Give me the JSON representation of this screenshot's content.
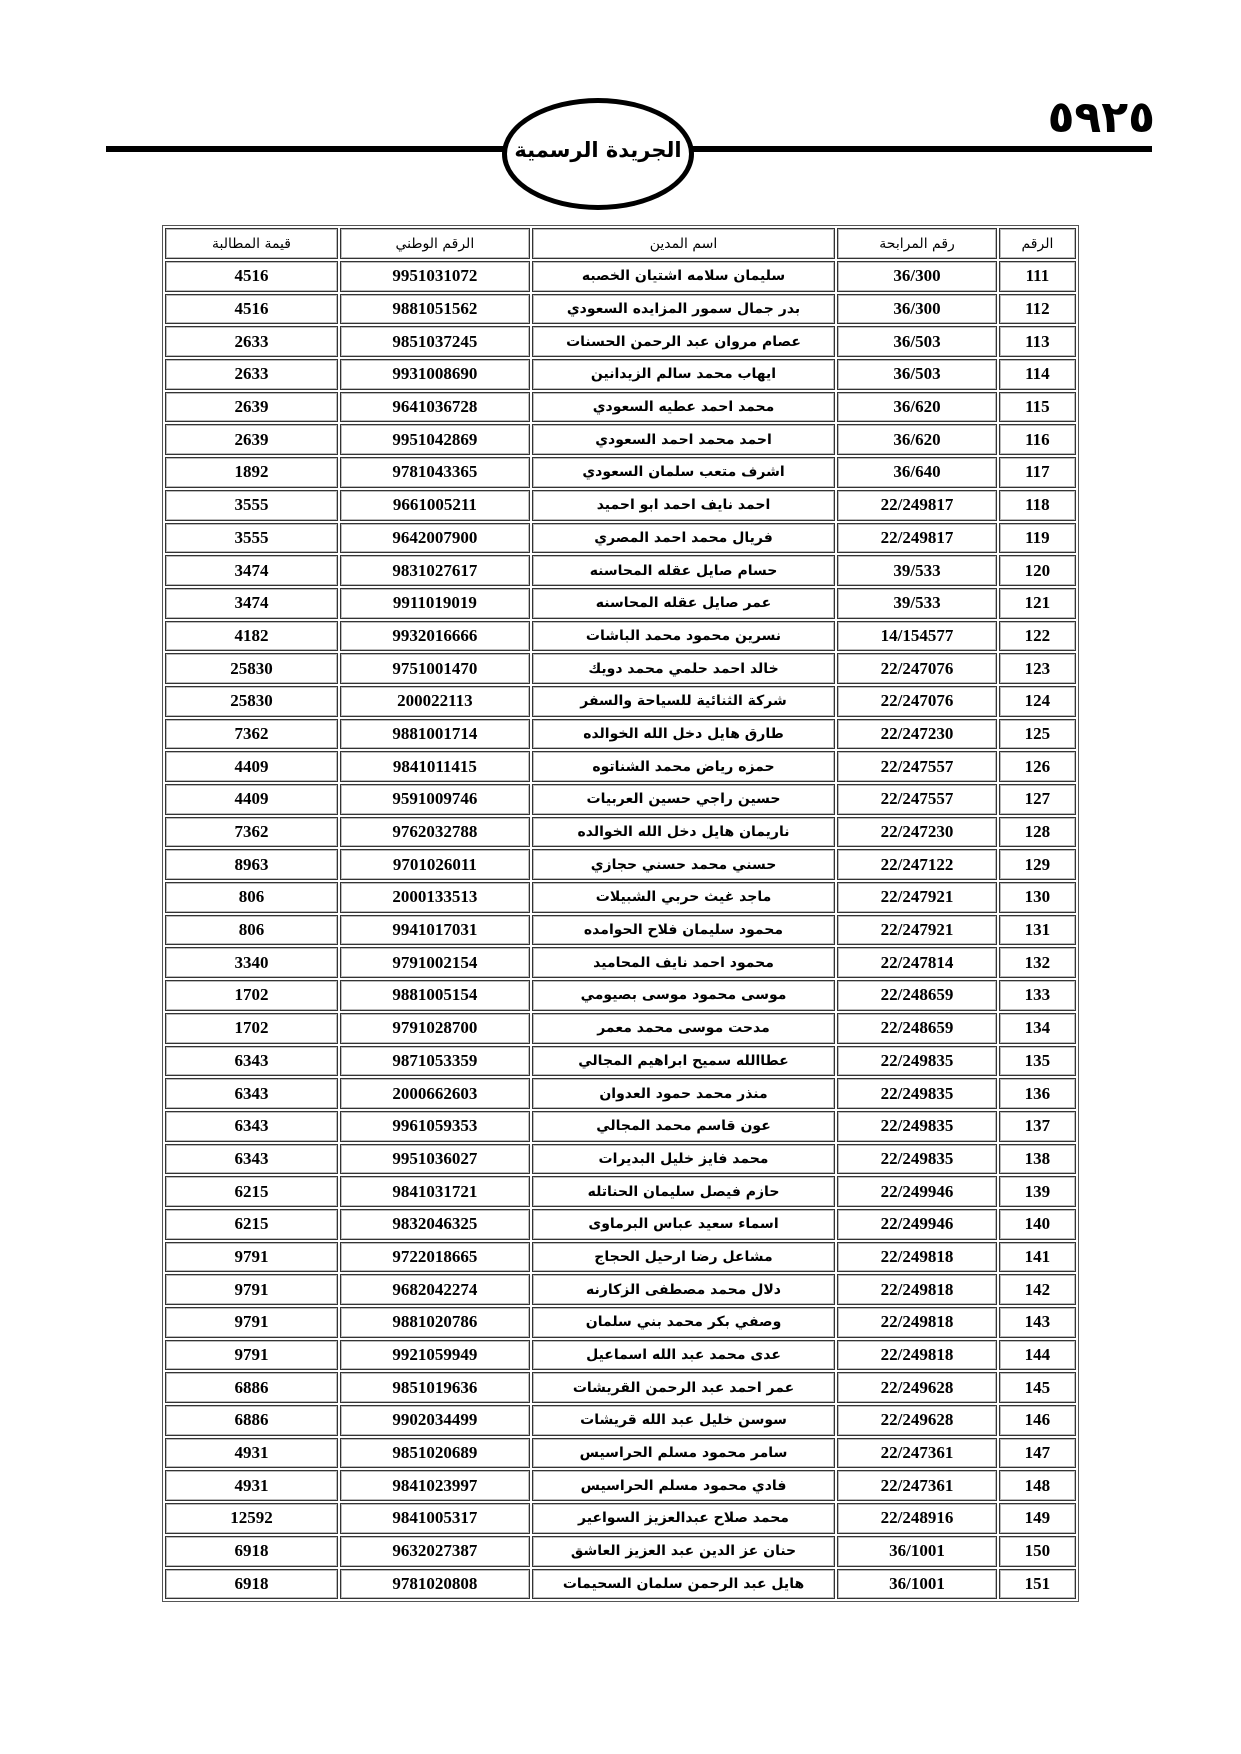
{
  "header": {
    "page_number": "٥٩٢٥",
    "title": "الجريدة الرسمية"
  },
  "table": {
    "columns": [
      "الرقم",
      "رقم المرابحة",
      "اسم المدين",
      "الرقم الوطني",
      "قيمة المطالبة"
    ],
    "rows": [
      [
        "111",
        "36/300",
        "سليمان سلامه اشتيان الخصبه",
        "9951031072",
        "4516"
      ],
      [
        "112",
        "36/300",
        "بدر جمال سمور المزايده السعودي",
        "9881051562",
        "4516"
      ],
      [
        "113",
        "36/503",
        "عصام مروان عبد الرحمن الحسنات",
        "9851037245",
        "2633"
      ],
      [
        "114",
        "36/503",
        "ايهاب محمد سالم الزيدانين",
        "9931008690",
        "2633"
      ],
      [
        "115",
        "36/620",
        "محمد احمد عطيه السعودي",
        "9641036728",
        "2639"
      ],
      [
        "116",
        "36/620",
        "احمد محمد احمد السعودي",
        "9951042869",
        "2639"
      ],
      [
        "117",
        "36/640",
        "اشرف متعب سلمان السعودي",
        "9781043365",
        "1892"
      ],
      [
        "118",
        "22/249817",
        "احمد نايف احمد ابو احميد",
        "9661005211",
        "3555"
      ],
      [
        "119",
        "22/249817",
        "فريال محمد احمد المصري",
        "9642007900",
        "3555"
      ],
      [
        "120",
        "39/533",
        "حسام صايل عقله المحاسنه",
        "9831027617",
        "3474"
      ],
      [
        "121",
        "39/533",
        "عمر صايل عقله المحاسنه",
        "9911019019",
        "3474"
      ],
      [
        "122",
        "14/154577",
        "نسرين محمود محمد الباشات",
        "9932016666",
        "4182"
      ],
      [
        "123",
        "22/247076",
        "خالد احمد حلمي محمد دويك",
        "9751001470",
        "25830"
      ],
      [
        "124",
        "22/247076",
        "شركة الثنائية للسياحة والسفر",
        "200022113",
        "25830"
      ],
      [
        "125",
        "22/247230",
        "طارق هايل دخل الله الخوالده",
        "9881001714",
        "7362"
      ],
      [
        "126",
        "22/247557",
        "حمزه رياض محمد الشناتوه",
        "9841011415",
        "4409"
      ],
      [
        "127",
        "22/247557",
        "حسين راجي حسين العربيات",
        "9591009746",
        "4409"
      ],
      [
        "128",
        "22/247230",
        "ناريمان هايل دخل الله الخوالده",
        "9762032788",
        "7362"
      ],
      [
        "129",
        "22/247122",
        "حسني محمد حسني حجازي",
        "9701026011",
        "8963"
      ],
      [
        "130",
        "22/247921",
        "ماجد غيث حربي الشبيلات",
        "2000133513",
        "806"
      ],
      [
        "131",
        "22/247921",
        "محمود سليمان فلاح الحوامده",
        "9941017031",
        "806"
      ],
      [
        "132",
        "22/247814",
        "محمود احمد نايف المحاميد",
        "9791002154",
        "3340"
      ],
      [
        "133",
        "22/248659",
        "موسى محمود موسى بصيومي",
        "9881005154",
        "1702"
      ],
      [
        "134",
        "22/248659",
        "مدحت موسى محمد معمر",
        "9791028700",
        "1702"
      ],
      [
        "135",
        "22/249835",
        "عطاالله سميح ابراهيم المجالي",
        "9871053359",
        "6343"
      ],
      [
        "136",
        "22/249835",
        "منذر محمد حمود العدوان",
        "2000662603",
        "6343"
      ],
      [
        "137",
        "22/249835",
        "عون قاسم محمد المجالي",
        "9961059353",
        "6343"
      ],
      [
        "138",
        "22/249835",
        "محمد فايز خليل البديرات",
        "9951036027",
        "6343"
      ],
      [
        "139",
        "22/249946",
        "حازم فيصل سليمان الحناتله",
        "9841031721",
        "6215"
      ],
      [
        "140",
        "22/249946",
        "اسماء سعيد عباس البرماوى",
        "9832046325",
        "6215"
      ],
      [
        "141",
        "22/249818",
        "مشاعل رضا ارحيل الحجاج",
        "9722018665",
        "9791"
      ],
      [
        "142",
        "22/249818",
        "دلال محمد مصطفى الزكارنه",
        "9682042274",
        "9791"
      ],
      [
        "143",
        "22/249818",
        "وصفي بكر محمد بني سلمان",
        "9881020786",
        "9791"
      ],
      [
        "144",
        "22/249818",
        "عدى محمد عبد الله اسماعيل",
        "9921059949",
        "9791"
      ],
      [
        "145",
        "22/249628",
        "عمر احمد عبد الرحمن القريشات",
        "9851019636",
        "6886"
      ],
      [
        "146",
        "22/249628",
        "سوسن خليل عبد الله قريشات",
        "9902034499",
        "6886"
      ],
      [
        "147",
        "22/247361",
        "سامر محمود مسلم الحراسيس",
        "9851020689",
        "4931"
      ],
      [
        "148",
        "22/247361",
        "فادي محمود مسلم الحراسيس",
        "9841023997",
        "4931"
      ],
      [
        "149",
        "22/248916",
        "محمد صلاح عبدالعزيز السواعير",
        "9841005317",
        "12592"
      ],
      [
        "150",
        "36/1001",
        "حنان عز الدين عبد العزيز العاشق",
        "9632027387",
        "6918"
      ],
      [
        "151",
        "36/1001",
        "هايل عبد الرحمن سلمان السحيمات",
        "9781020808",
        "6918"
      ]
    ]
  }
}
